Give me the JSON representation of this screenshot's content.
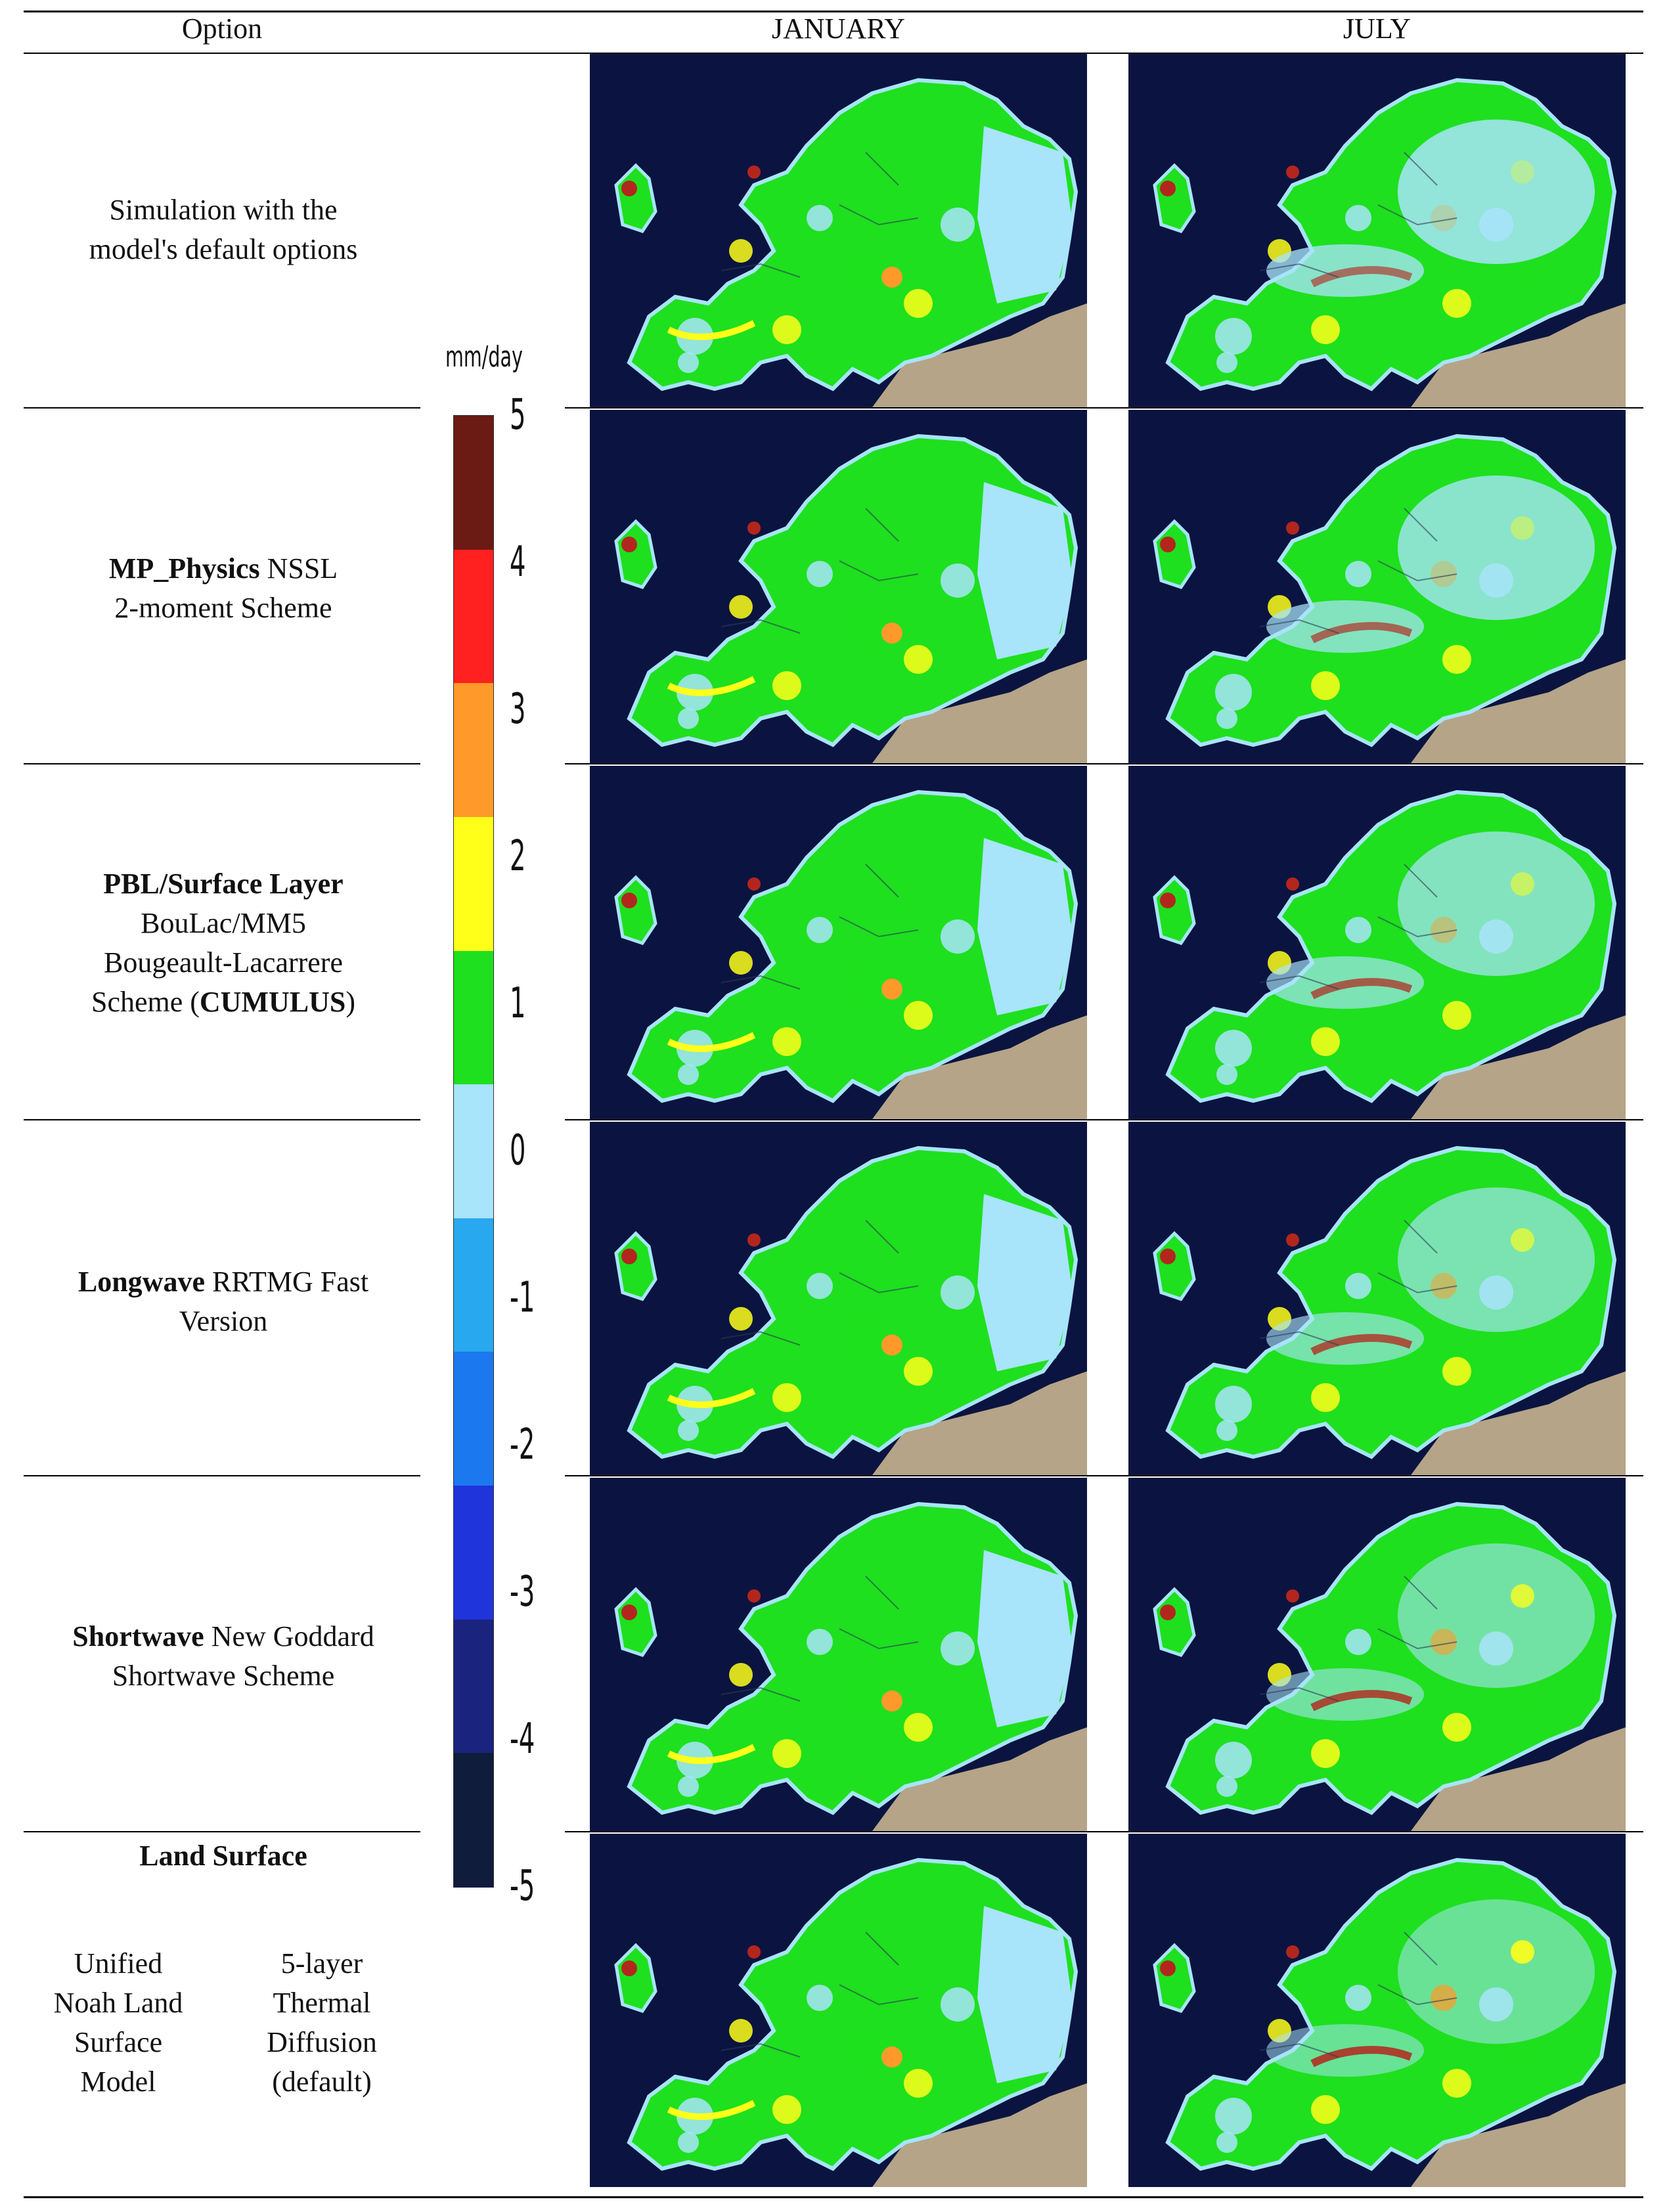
{
  "headers": {
    "option": "Option",
    "january": "JANUARY",
    "july": "JULY"
  },
  "colorbar": {
    "unit": "mm/day",
    "ticks": [
      "5",
      "4",
      "3",
      "2",
      "1",
      "0",
      "-1",
      "-2",
      "-3",
      "-4",
      "-5"
    ],
    "bins": [
      "#6b1a14",
      "#ff2020",
      "#ff9a2a",
      "#ffff1a",
      "#1ee01e",
      "#a8e4fa",
      "#28a8ee",
      "#1c78ee",
      "#2034dc",
      "#1a237e",
      "#101c3c"
    ]
  },
  "rows": [
    {
      "line1": "Simulation with the",
      "line2": "model's default options",
      "january_map": "january-anomaly-map",
      "july_map": "july-anomaly-map"
    },
    {
      "bold": "MP_Physics",
      "rest": " NSSL",
      "line2": "2-moment Scheme",
      "january_map": "january-anomaly-map",
      "july_map": "july-anomaly-map"
    },
    {
      "bold": "PBL/Surface Layer",
      "line2": "BouLac/MM5",
      "line3": "Bougeault-Lacarrere",
      "line4_pre": "Scheme (",
      "line4_bold": "CUMULUS",
      "line4_post": ")",
      "january_map": "january-anomaly-map",
      "july_map": "july-anomaly-map"
    },
    {
      "bold": "Longwave",
      "rest": " RRTMG Fast",
      "line2": "Version",
      "january_map": "january-anomaly-map",
      "july_map": "july-anomaly-map"
    },
    {
      "bold": "Shortwave",
      "rest": " New Goddard",
      "line2": "Shortwave Scheme",
      "january_map": "january-anomaly-map",
      "july_map": "july-anomaly-map"
    },
    {
      "bold": "Land Surface",
      "col1": [
        "Unified",
        "Noah Land",
        "Surface",
        "Model"
      ],
      "col2": [
        "5-layer",
        "Thermal",
        "Diffusion",
        "(default)"
      ],
      "january_map": "january-anomaly-map",
      "july_map": "july-anomaly-map"
    }
  ]
}
